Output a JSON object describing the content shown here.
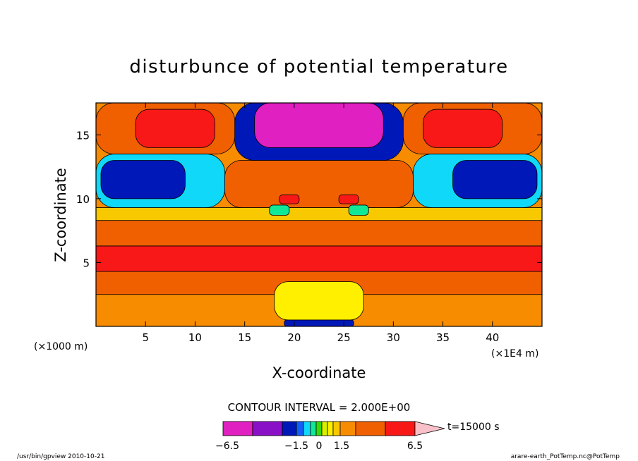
{
  "chart_data": {
    "type": "heatmap",
    "title": "disturbunce of potential temperature",
    "xlabel": "X-coordinate",
    "ylabel": "Z-coordinate",
    "x_unit": "(×1000 m)",
    "x_scale_note": "(×1E4 m)",
    "xlim": [
      0,
      45
    ],
    "ylim": [
      0,
      17.5
    ],
    "x_ticks": [
      "5",
      "10",
      "15",
      "20",
      "25",
      "30",
      "35",
      "40"
    ],
    "x_tick_values": [
      5,
      10,
      15,
      20,
      25,
      30,
      35,
      40
    ],
    "y_ticks": [
      "5",
      "10",
      "15"
    ],
    "y_tick_values": [
      5,
      10,
      15
    ],
    "contour_interval_label": "CONTOUR INTERVAL = 2.000E+00",
    "time_label": "t=15000 s",
    "colorbar": {
      "labels": [
        "−6.5",
        "−1.5",
        "0",
        "1.5",
        "6.5"
      ],
      "label_values": [
        -6.5,
        -1.5,
        0,
        1.5,
        6.5
      ],
      "levels": [
        -8.5,
        -6.5,
        -4.5,
        -2.5,
        -1.5,
        -1.0,
        -0.5,
        0,
        0.5,
        1.0,
        1.5,
        2.5,
        4.5,
        6.5,
        8.5
      ],
      "colors": [
        "#e020c0",
        "#8a10c8",
        "#0018b8",
        "#1060f8",
        "#10d8f8",
        "#10e898",
        "#38d808",
        "#d8f000",
        "#fff000",
        "#f8c800",
        "#f88c00",
        "#f06000",
        "#f81818",
        "#f87070",
        "#f8c0c8"
      ]
    },
    "regions": [
      {
        "x": [
          0,
          45
        ],
        "z": [
          0,
          17.5
        ],
        "value": 2
      },
      {
        "x": [
          0,
          45
        ],
        "z": [
          2.5,
          4.3
        ],
        "value": 3
      },
      {
        "x": [
          0,
          45
        ],
        "z": [
          4.3,
          6.3
        ],
        "value": 5.5
      },
      {
        "x": [
          0,
          45
        ],
        "z": [
          6.3,
          8.3
        ],
        "value": 3.5
      },
      {
        "x": [
          0,
          45
        ],
        "z": [
          8.3,
          9.3
        ],
        "value": 1.2
      },
      {
        "x": [
          0,
          13
        ],
        "z": [
          9.3,
          13.5
        ],
        "value": -1.5
      },
      {
        "x": [
          32,
          45
        ],
        "z": [
          9.3,
          13.5
        ],
        "value": -1.5
      },
      {
        "x": [
          0.5,
          9
        ],
        "z": [
          10,
          13
        ],
        "value": -4
      },
      {
        "x": [
          36,
          44.5
        ],
        "z": [
          10,
          13
        ],
        "value": -4
      },
      {
        "x": [
          13,
          32
        ],
        "z": [
          9.3,
          13
        ],
        "value": 3.5
      },
      {
        "x": [
          14,
          31
        ],
        "z": [
          13,
          17.5
        ],
        "value": -3.5
      },
      {
        "x": [
          16,
          29
        ],
        "z": [
          14,
          17.5
        ],
        "value": -7
      },
      {
        "x": [
          0,
          14
        ],
        "z": [
          13.5,
          17.5
        ],
        "value": 2.5
      },
      {
        "x": [
          31,
          45
        ],
        "z": [
          13.5,
          17.5
        ],
        "value": 2.5
      },
      {
        "x": [
          4,
          12
        ],
        "z": [
          14,
          17
        ],
        "value": 4.5
      },
      {
        "x": [
          33,
          41
        ],
        "z": [
          14,
          17
        ],
        "value": 4.5
      },
      {
        "x": [
          18,
          27
        ],
        "z": [
          0.5,
          3.5
        ],
        "value": 0.8
      },
      {
        "x": [
          19,
          26
        ],
        "z": [
          0,
          0.5
        ],
        "value": -3
      },
      {
        "x": [
          18.5,
          20.5
        ],
        "z": [
          9.6,
          10.3
        ],
        "value": 6
      },
      {
        "x": [
          24.5,
          26.5
        ],
        "z": [
          9.6,
          10.3
        ],
        "value": 6
      },
      {
        "x": [
          17.5,
          19.5
        ],
        "z": [
          8.7,
          9.5
        ],
        "value": -1
      },
      {
        "x": [
          25.5,
          27.5
        ],
        "z": [
          8.7,
          9.5
        ],
        "value": -1
      }
    ]
  },
  "footer": {
    "left": "/usr/bin/gpview  2010-10-21",
    "right": "arare-earth_PotTemp.nc@PotTemp"
  }
}
